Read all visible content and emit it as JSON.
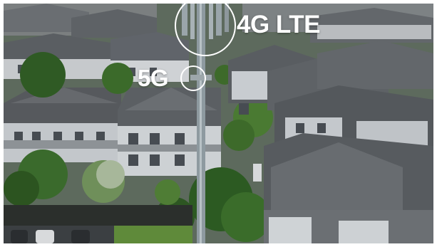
{
  "photo": {
    "scene": "aerial-neighborhood-cell-tower",
    "palette": {
      "roof": "#5a5e62",
      "roof_light": "#6c7074",
      "wall": "#c9cdd2",
      "tree": "#2f5a24",
      "grass": "#5f8a3a",
      "pole": "#8e9aa0",
      "ring": "#ffffff",
      "label": "#ffffff"
    }
  },
  "labels": {
    "lte": "4G LTE",
    "fiveg": "5G"
  }
}
